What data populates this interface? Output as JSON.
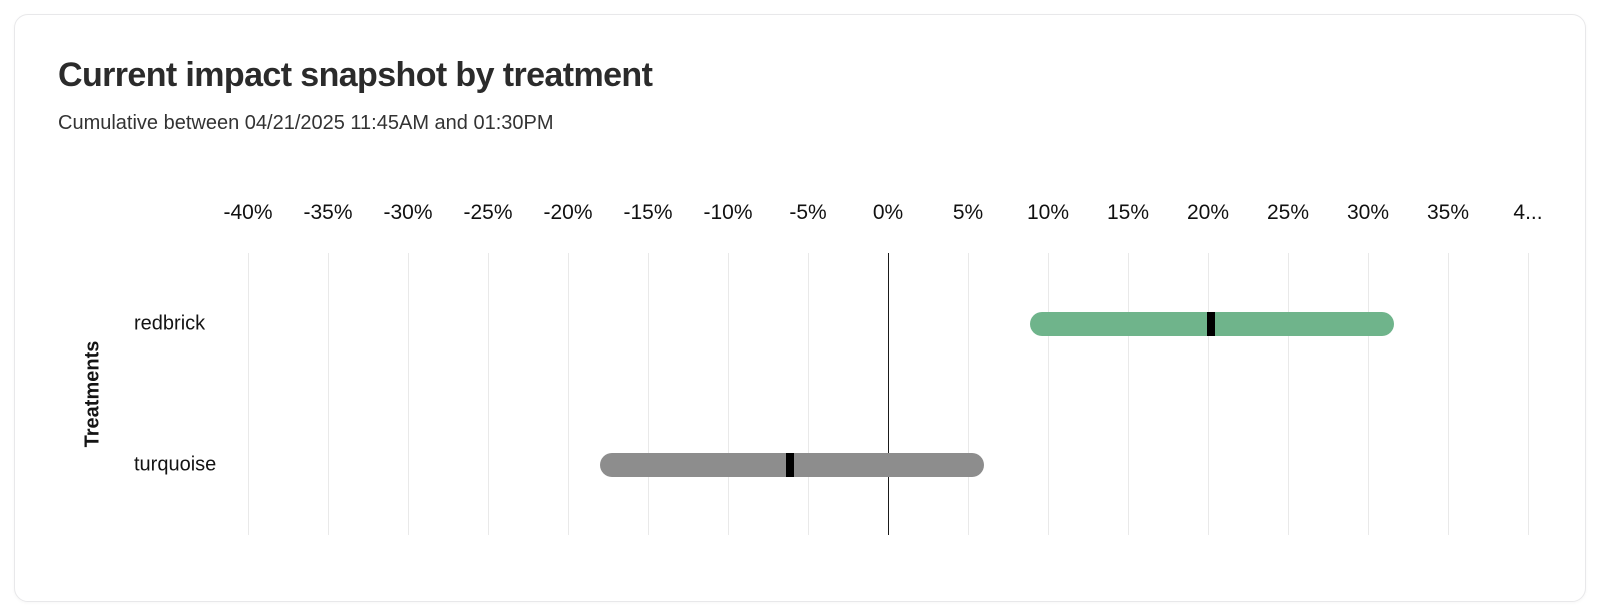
{
  "card": {
    "title": "Current impact snapshot by treatment",
    "subtitle": "Cumulative between 04/21/2025 11:45AM and 01:30PM"
  },
  "chart_data": {
    "type": "bar",
    "orientation": "horizontal",
    "title": "Current impact snapshot by treatment",
    "subtitle": "Cumulative between 04/21/2025 11:45AM and 01:30PM",
    "xlabel": "",
    "ylabel": "Treatments",
    "unit": "%",
    "xlim": [
      -40,
      40
    ],
    "grid": "vertical",
    "zero_line": true,
    "x_ticks": [
      -40,
      -35,
      -30,
      -25,
      -20,
      -15,
      -10,
      -5,
      0,
      5,
      10,
      15,
      20,
      25,
      30,
      35,
      40
    ],
    "x_tick_labels": [
      "-40%",
      "-35%",
      "-30%",
      "-25%",
      "-20%",
      "-15%",
      "-10%",
      "-5%",
      "0%",
      "5%",
      "10%",
      "15%",
      "20%",
      "25%",
      "30%",
      "35%",
      "4..."
    ],
    "categories": [
      "redbrick",
      "turquoise"
    ],
    "series": [
      {
        "name": "redbrick",
        "low": 8.9,
        "mid": 20.2,
        "high": 31.6,
        "color": "#6fb48b"
      },
      {
        "name": "turquoise",
        "low": -18.0,
        "mid": -6.1,
        "high": 6.0,
        "color": "#8d8d8d"
      }
    ],
    "colors": {
      "marker": "#000000",
      "gridline": "#e9e9e9",
      "zero_line": "#1a1a1a"
    }
  }
}
